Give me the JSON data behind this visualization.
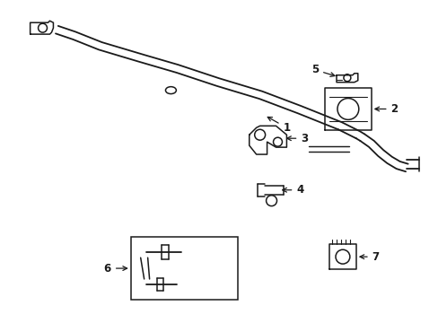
{
  "background_color": "#ffffff",
  "line_color": "#1a1a1a",
  "fig_width": 4.89,
  "fig_height": 3.6,
  "dpi": 100
}
